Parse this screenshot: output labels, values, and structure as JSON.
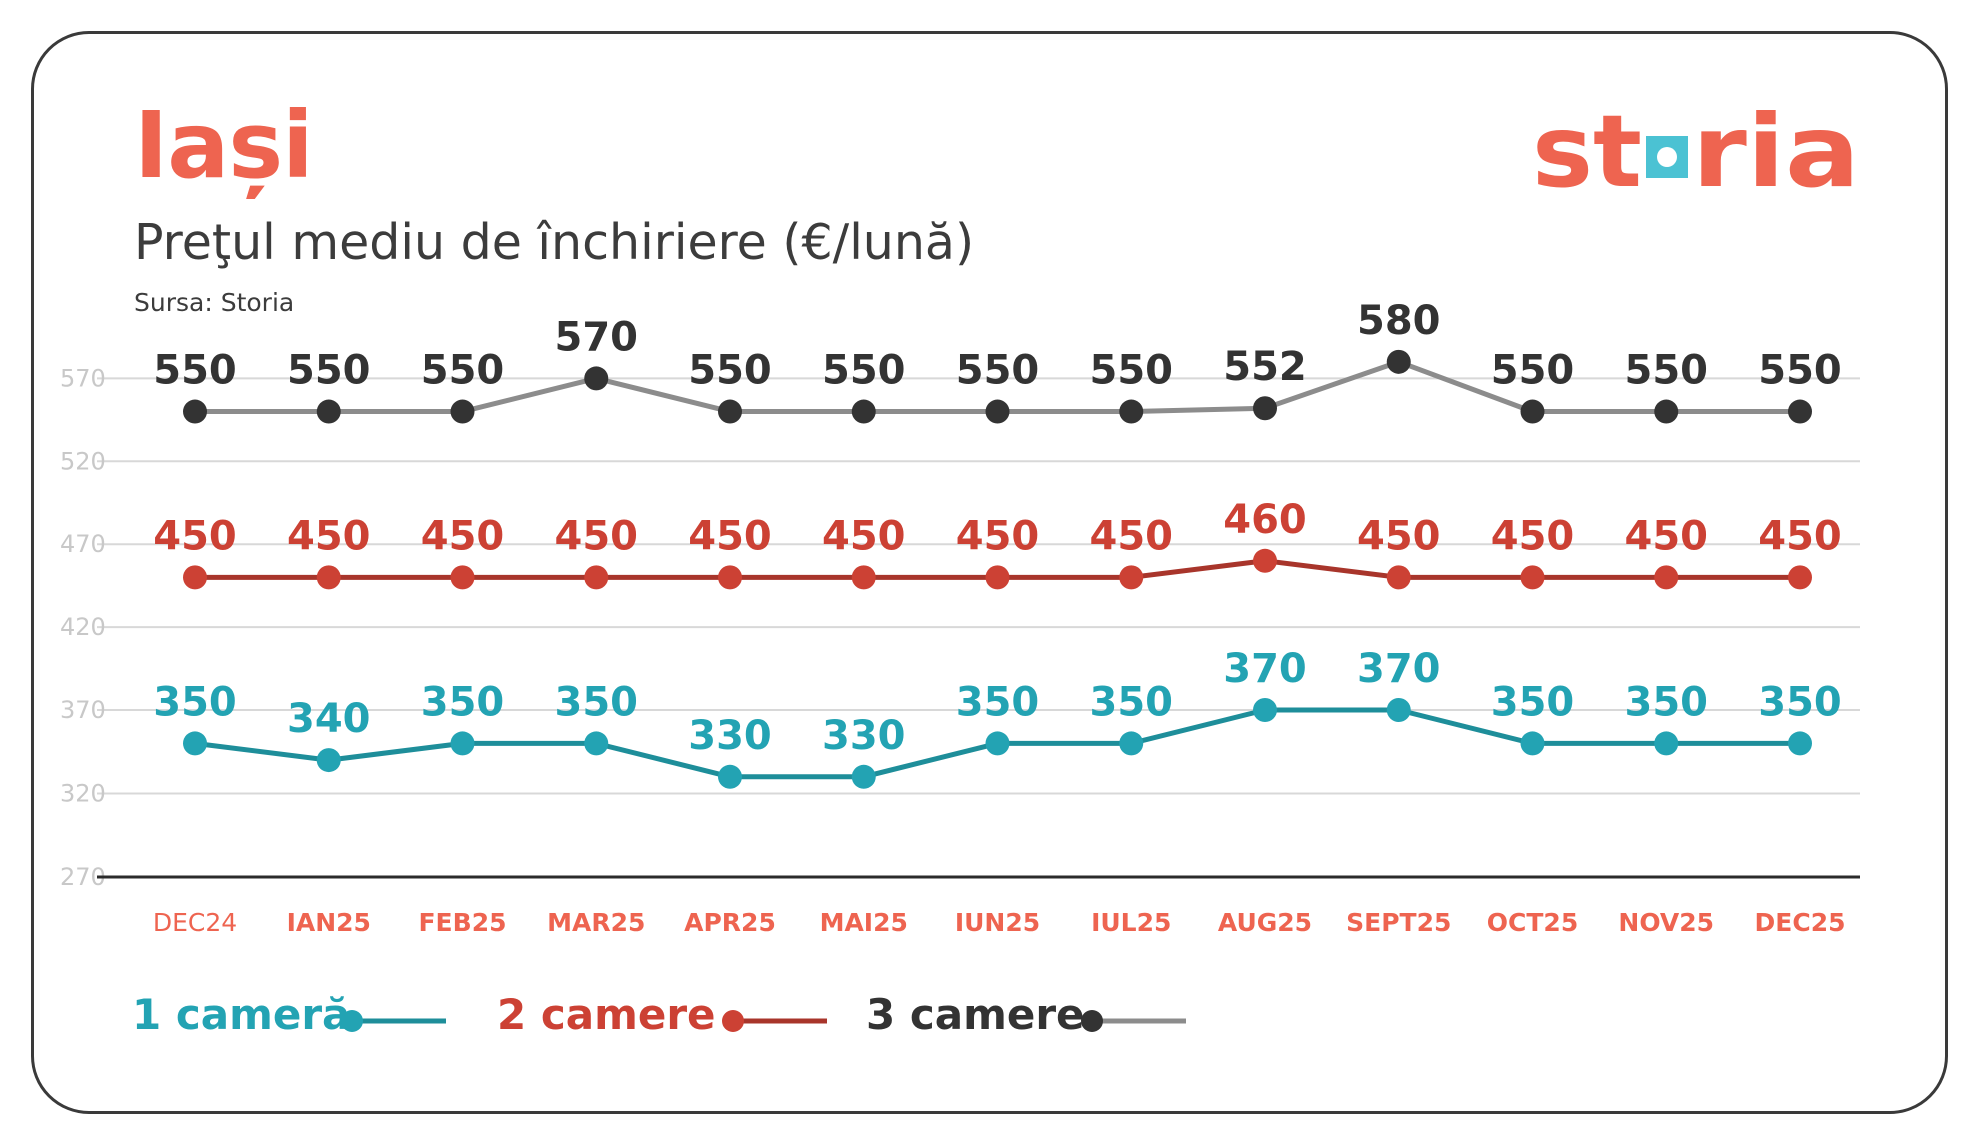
{
  "header": {
    "city": "Iași",
    "subtitle": "Preţul mediu de închiriere (€/lună)",
    "source": "Sursa: Storia",
    "logo_text": "storia"
  },
  "colors": {
    "brand": "#ee6450",
    "logo_square": "#4bc2d3",
    "one_room": "#1e8e9a",
    "one_room_label": "#23a3b3",
    "two_rooms": "#a8352b",
    "two_rooms_label": "#cc4134",
    "three_rooms_line": "#8c8c8c",
    "three_rooms_dot": "#333333",
    "axis": "#2b2b2b",
    "grid": "#d8d8d8",
    "tick_text": "#c8c8c8",
    "month_text": "#ee6450"
  },
  "chart_data": {
    "type": "line",
    "categories": [
      "DEC24",
      "IAN25",
      "FEB25",
      "MAR25",
      "APR25",
      "MAI25",
      "IUN25",
      "IUL25",
      "AUG25",
      "SEPT25",
      "OCT25",
      "NOV25",
      "DEC25"
    ],
    "y_ticks": [
      270,
      320,
      370,
      420,
      470,
      520,
      570
    ],
    "ylim": [
      270,
      600
    ],
    "grid": true,
    "legend_position": "bottom-left",
    "series": [
      {
        "name": "1 cameră",
        "values": [
          350,
          340,
          350,
          350,
          330,
          330,
          350,
          350,
          370,
          370,
          350,
          350,
          350
        ]
      },
      {
        "name": "2 camere",
        "values": [
          450,
          450,
          450,
          450,
          450,
          450,
          450,
          450,
          460,
          450,
          450,
          450,
          450
        ]
      },
      {
        "name": "3 camere",
        "values": [
          550,
          550,
          550,
          570,
          550,
          550,
          550,
          550,
          552,
          580,
          550,
          550,
          550
        ]
      }
    ]
  }
}
